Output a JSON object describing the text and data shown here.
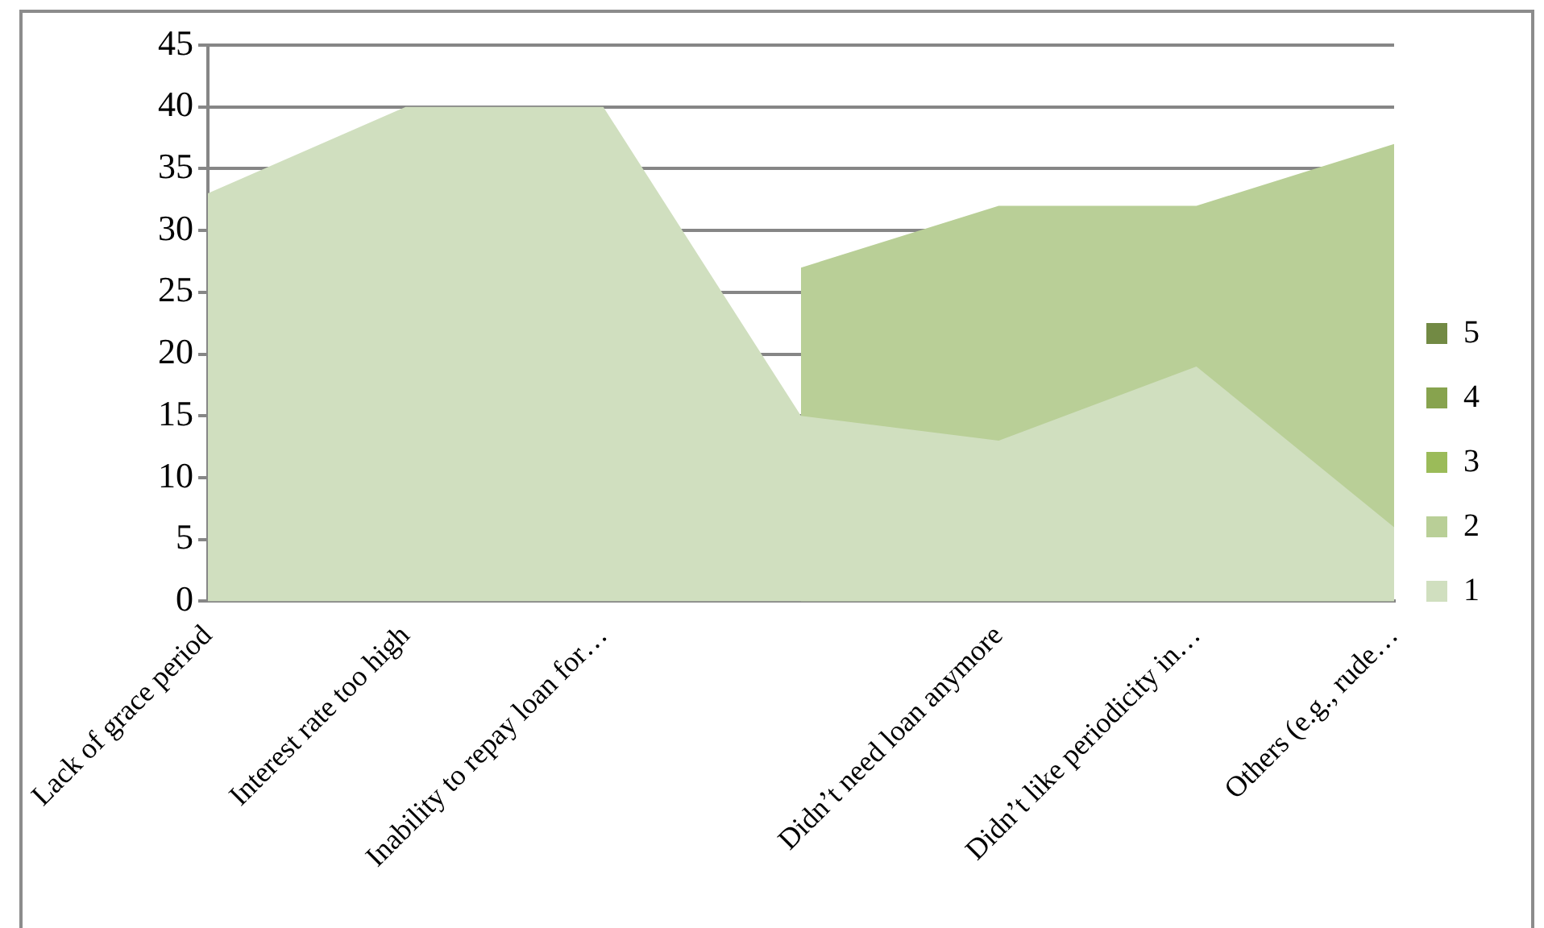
{
  "chart_data": {
    "type": "area",
    "categories": [
      "Lack of grace period",
      "Interest rate too high",
      "Inability to repay loan for…",
      null,
      "Didn’t need loan anymore",
      "Didn’t like periodicity in…",
      "Others (e.g., rude…"
    ],
    "series": [
      {
        "name": "1",
        "color": "#d0dfbf",
        "values": [
          33,
          40,
          40,
          15,
          13,
          19,
          6
        ]
      },
      {
        "name": "2",
        "color": "#b9cf97",
        "values": [
          null,
          null,
          null,
          27,
          32,
          32,
          37
        ]
      },
      {
        "name": "3",
        "color": "#9bbb59",
        "values": [
          null,
          null,
          null,
          null,
          null,
          null,
          null
        ]
      },
      {
        "name": "4",
        "color": "#87a34e",
        "values": [
          null,
          null,
          null,
          null,
          null,
          null,
          null
        ]
      },
      {
        "name": "5",
        "color": "#728a44",
        "values": [
          null,
          null,
          null,
          null,
          null,
          null,
          null
        ]
      }
    ],
    "ylim": [
      0,
      45
    ],
    "yticks": [
      0,
      5,
      10,
      15,
      20,
      25,
      30,
      35,
      40,
      45
    ],
    "grid": "y",
    "legend": "right"
  }
}
